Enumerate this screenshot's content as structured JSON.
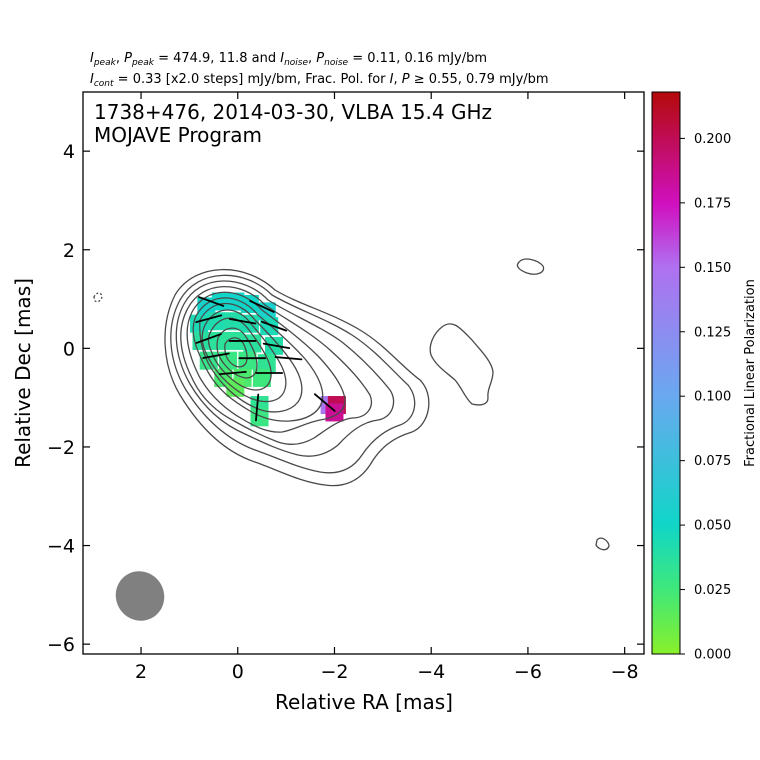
{
  "header": {
    "line1": {
      "peak_label": "peak",
      "noise_label": "noise",
      "values": "= 474.9, 11.8 and",
      "noise_values": "= 0.11, 0.16 mJy/bm"
    },
    "line2": {
      "cont_label": "cont",
      "cont_values": "= 0.33 [x2.0 steps] mJy/bm, Frac. Pol. for",
      "pol_threshold": "≥ 0.55, 0.79 mJy/bm"
    }
  },
  "plot": {
    "title_line1": "1738+476, 2014-03-30, VLBA 15.4 GHz",
    "title_line2": "MOJAVE Program",
    "xlabel": "Relative RA [mas]",
    "ylabel": "Relative Dec [mas]",
    "colorbar_label": "Fractional Linear Polarization"
  },
  "colors": {
    "contour": "#4a4a4a",
    "beam": "#808080",
    "colormap": [
      "#88f02a",
      "#3fe87a",
      "#10d6c8",
      "#6aa8f0",
      "#b070f0",
      "#d010c0",
      "#b40a0a"
    ]
  },
  "chart_data": {
    "type": "contour",
    "x_axis": {
      "label": "Relative RA [mas]",
      "range": [
        3.2,
        -8.4
      ],
      "ticks": [
        2,
        0,
        -2,
        -4,
        -6,
        -8
      ],
      "tick_labels": [
        "2",
        "0",
        "−2",
        "−4",
        "−6",
        "−8"
      ]
    },
    "y_axis": {
      "label": "Relative Dec [mas]",
      "range": [
        -6.2,
        5.2
      ],
      "ticks": [
        -6,
        -4,
        -2,
        0,
        2,
        4
      ],
      "tick_labels": [
        "−6",
        "−4",
        "−2",
        "0",
        "2",
        "4"
      ]
    },
    "colorbar": {
      "label": "Fractional Linear Polarization",
      "range": [
        0.0,
        0.218
      ],
      "ticks": [
        0.0,
        0.025,
        0.05,
        0.075,
        0.1,
        0.125,
        0.15,
        0.175,
        0.2
      ],
      "tick_labels": [
        "0.000",
        "0.025",
        "0.050",
        "0.075",
        "0.100",
        "0.125",
        "0.150",
        "0.175",
        "0.200"
      ]
    },
    "stats": {
      "I_peak": 474.9,
      "P_peak": 11.8,
      "I_noise": 0.11,
      "P_noise": 0.16,
      "I_cont": 0.33,
      "cont_step": 2.0,
      "frac_pol_threshold_I": 0.55,
      "frac_pol_threshold_P": 0.79,
      "unit": "mJy/bm"
    },
    "source": "1738+476",
    "date": "2014-03-30",
    "frequency_GHz": 15.4,
    "contour_levels_mJy": [
      0.33,
      0.66,
      1.32,
      2.64,
      5.28,
      10.56,
      21.12,
      42.24,
      84.48,
      168.96,
      337.92
    ],
    "beam": {
      "ra": 1.9,
      "dec": -5.0,
      "major_mas": 1.1,
      "minor_mas": 0.95,
      "pa_deg": 22
    },
    "polarization_pixels": [
      {
        "ra": 0.65,
        "dec": 0.85,
        "fpol": 0.053
      },
      {
        "ra": 0.35,
        "dec": 0.95,
        "fpol": 0.05
      },
      {
        "ra": 0.05,
        "dec": 0.95,
        "fpol": 0.052
      },
      {
        "ra": -0.25,
        "dec": 0.9,
        "fpol": 0.05
      },
      {
        "ra": -0.6,
        "dec": 0.75,
        "fpol": 0.055
      },
      {
        "ra": 0.8,
        "dec": 0.5,
        "fpol": 0.044
      },
      {
        "ra": 0.45,
        "dec": 0.55,
        "fpol": 0.042
      },
      {
        "ra": 0.1,
        "dec": 0.55,
        "fpol": 0.04
      },
      {
        "ra": -0.25,
        "dec": 0.5,
        "fpol": 0.042
      },
      {
        "ra": -0.65,
        "dec": 0.45,
        "fpol": 0.045
      },
      {
        "ra": 0.75,
        "dec": 0.15,
        "fpol": 0.037
      },
      {
        "ra": 0.4,
        "dec": 0.15,
        "fpol": 0.035
      },
      {
        "ra": 0.05,
        "dec": 0.15,
        "fpol": 0.035
      },
      {
        "ra": -0.3,
        "dec": 0.1,
        "fpol": 0.036
      },
      {
        "ra": -0.75,
        "dec": 0.05,
        "fpol": 0.04
      },
      {
        "ra": 0.6,
        "dec": -0.25,
        "fpol": 0.03
      },
      {
        "ra": 0.2,
        "dec": -0.25,
        "fpol": 0.028
      },
      {
        "ra": -0.2,
        "dec": -0.25,
        "fpol": 0.028
      },
      {
        "ra": -0.6,
        "dec": -0.3,
        "fpol": 0.033
      },
      {
        "ra": 0.3,
        "dec": -0.6,
        "fpol": 0.022
      },
      {
        "ra": -0.1,
        "dec": -0.6,
        "fpol": 0.021
      },
      {
        "ra": -0.5,
        "dec": -0.6,
        "fpol": 0.026
      },
      {
        "ra": 0.05,
        "dec": -0.8,
        "fpol": 0.015
      },
      {
        "ra": -0.45,
        "dec": -1.15,
        "fpol": 0.033
      },
      {
        "ra": -0.45,
        "dec": -1.4,
        "fpol": 0.028
      },
      {
        "ra": -1.9,
        "dec": -1.15,
        "fpol": 0.145
      },
      {
        "ra": -2.05,
        "dec": -1.15,
        "fpol": 0.2
      },
      {
        "ra": -2.0,
        "dec": -1.3,
        "fpol": 0.185
      }
    ],
    "evpa_vectors": [
      {
        "ra": 0.55,
        "dec": 0.95,
        "angle_deg": -20
      },
      {
        "ra": -0.5,
        "dec": 0.85,
        "angle_deg": -25
      },
      {
        "ra": 0.6,
        "dec": 0.6,
        "angle_deg": 15
      },
      {
        "ra": -0.1,
        "dec": 0.55,
        "angle_deg": -10
      },
      {
        "ra": -0.75,
        "dec": 0.45,
        "angle_deg": -20
      },
      {
        "ra": 0.6,
        "dec": 0.2,
        "angle_deg": 20
      },
      {
        "ra": -0.1,
        "dec": 0.15,
        "angle_deg": 0
      },
      {
        "ra": -0.8,
        "dec": 0.05,
        "angle_deg": -10
      },
      {
        "ra": 0.45,
        "dec": -0.15,
        "angle_deg": 10
      },
      {
        "ra": -0.3,
        "dec": -0.2,
        "angle_deg": 0
      },
      {
        "ra": -1.05,
        "dec": -0.2,
        "angle_deg": -5
      },
      {
        "ra": 0.1,
        "dec": -0.5,
        "angle_deg": 5
      },
      {
        "ra": -0.65,
        "dec": -0.5,
        "angle_deg": 0
      },
      {
        "ra": -0.4,
        "dec": -1.2,
        "angle_deg": 85
      },
      {
        "ra": -1.8,
        "dec": -1.1,
        "angle_deg": -40
      }
    ]
  }
}
